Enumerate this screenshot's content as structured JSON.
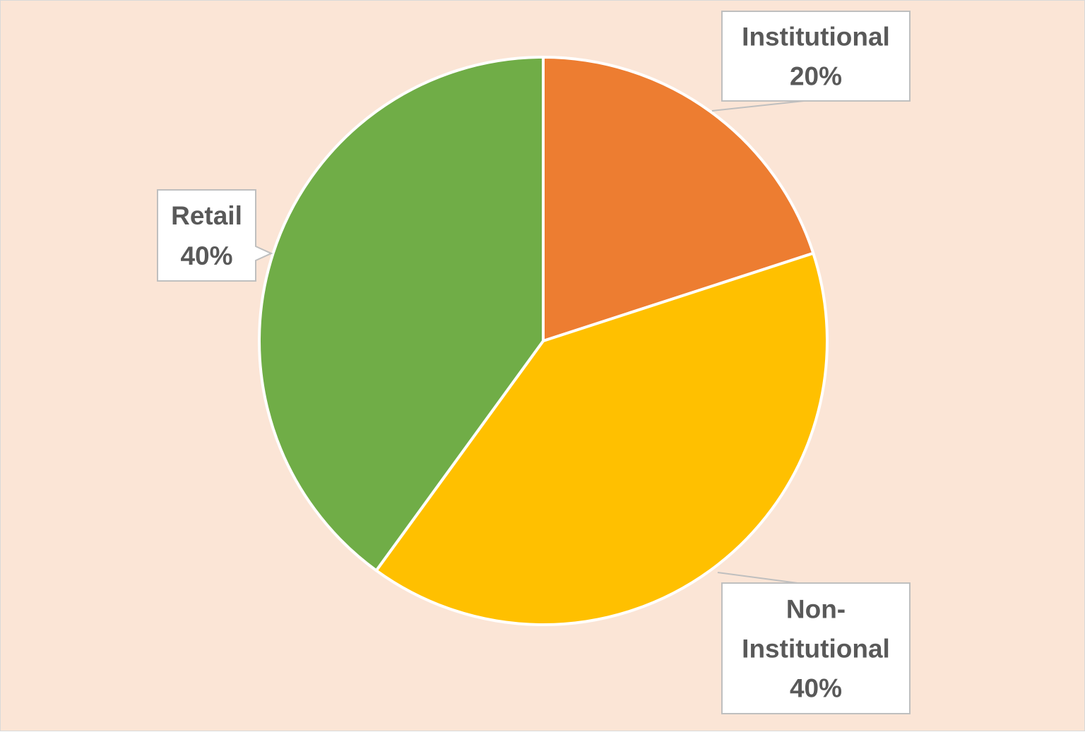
{
  "chart_data": {
    "type": "pie",
    "title": "",
    "start_angle_deg": 0,
    "direction": "clockwise",
    "slices": [
      {
        "label": "Institutional",
        "value": 20,
        "display": [
          "Institutional",
          "20%"
        ],
        "color": "#ed7d31"
      },
      {
        "label": "Non-Institutional",
        "value": 40,
        "display": [
          "Non-",
          "Institutional",
          "40%"
        ],
        "color": "#ffc000"
      },
      {
        "label": "Retail",
        "value": 40,
        "display": [
          "Retail",
          "40%"
        ],
        "color": "#70ad47"
      }
    ],
    "legend": "none",
    "data_labels": "callouts"
  },
  "colors": {
    "background": "#fbe5d6",
    "slice_border": "#ffffff",
    "callout_fill": "#ffffff",
    "callout_border": "#bfbfbf",
    "label_text": "#595959"
  }
}
